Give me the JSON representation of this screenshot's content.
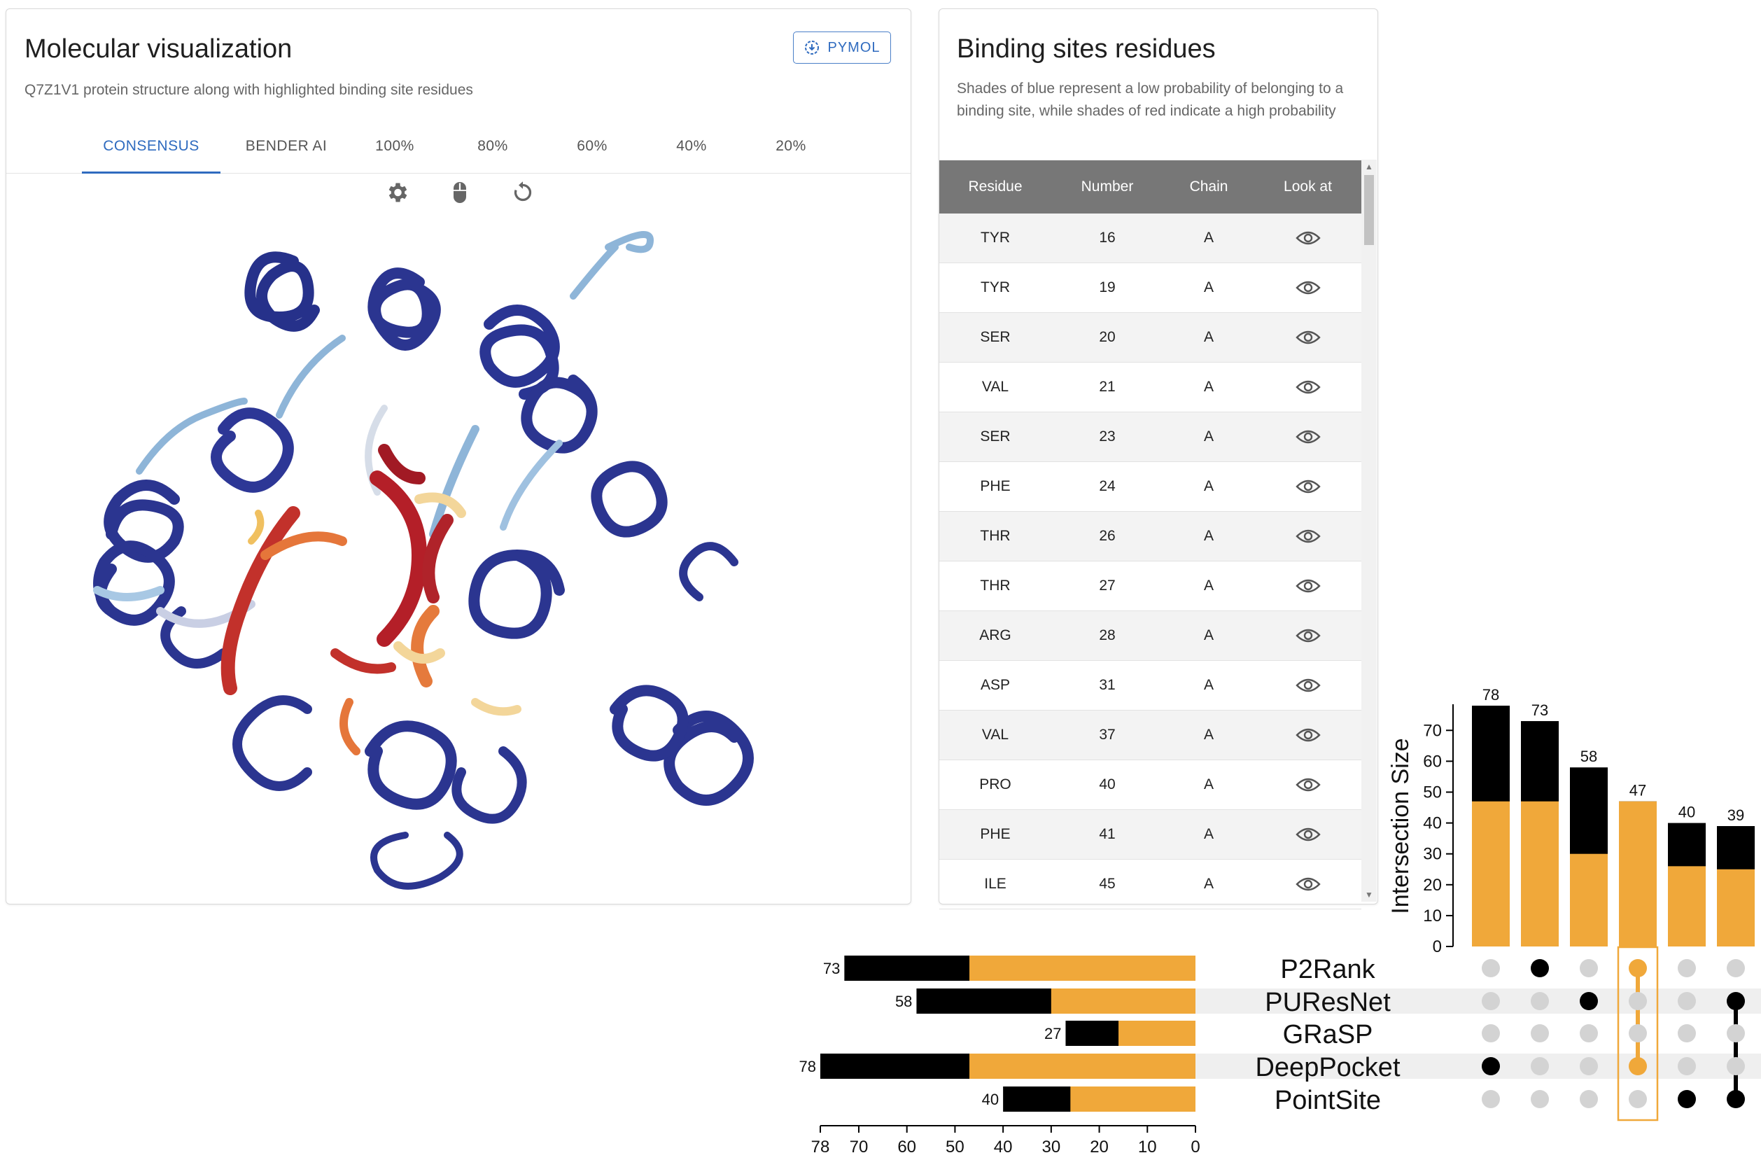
{
  "molecular": {
    "title": "Molecular visualization",
    "subtitle": "Q7Z1V1 protein structure along with highlighted binding site residues",
    "pymol_label": "PYMOL",
    "tabs": [
      "CONSENSUS",
      "BENDER AI",
      "100%",
      "80%",
      "60%",
      "40%",
      "20%"
    ],
    "active_tab": "CONSENSUS",
    "tools": [
      "gear-icon",
      "mouse-icon",
      "reset-icon"
    ]
  },
  "binding": {
    "title": "Binding sites residues",
    "subtitle": "Shades of blue represent a low probability of belonging to a binding site, while shades of red indicate a high probability",
    "columns": [
      "Residue",
      "Number",
      "Chain",
      "Look at"
    ],
    "rows": [
      [
        "TYR",
        "16",
        "A"
      ],
      [
        "TYR",
        "19",
        "A"
      ],
      [
        "SER",
        "20",
        "A"
      ],
      [
        "VAL",
        "21",
        "A"
      ],
      [
        "SER",
        "23",
        "A"
      ],
      [
        "PHE",
        "24",
        "A"
      ],
      [
        "THR",
        "26",
        "A"
      ],
      [
        "THR",
        "27",
        "A"
      ],
      [
        "ARG",
        "28",
        "A"
      ],
      [
        "ASP",
        "31",
        "A"
      ],
      [
        "VAL",
        "37",
        "A"
      ],
      [
        "PRO",
        "40",
        "A"
      ],
      [
        "PHE",
        "41",
        "A"
      ],
      [
        "ILE",
        "45",
        "A"
      ]
    ]
  },
  "chart_data": {
    "type": "upset",
    "ylabel": "Intersection Size",
    "sets": [
      "P2Rank",
      "PUResNet",
      "GRaSP",
      "DeepPocket",
      "PointSite"
    ],
    "set_sizes": [
      73,
      58,
      27,
      78,
      40
    ],
    "set_sizes_highlighted": [
      47,
      30,
      16,
      47,
      26
    ],
    "set_axis_ticks": [
      78,
      70,
      60,
      50,
      40,
      30,
      20,
      10,
      0
    ],
    "intersections": [
      {
        "sets": [
          "DeepPocket"
        ],
        "size": 78,
        "highlighted": 47
      },
      {
        "sets": [
          "P2Rank"
        ],
        "size": 73,
        "highlighted": 47
      },
      {
        "sets": [
          "PUResNet"
        ],
        "size": 58,
        "highlighted": 30
      },
      {
        "sets": [
          "P2Rank",
          "DeepPocket"
        ],
        "size": 47,
        "highlighted": 47,
        "selected": true
      },
      {
        "sets": [
          "PointSite"
        ],
        "size": 40,
        "highlighted": 26
      },
      {
        "sets": [
          "PUResNet",
          "PointSite"
        ],
        "size": 39,
        "highlighted": 25
      }
    ],
    "ylim": [
      0,
      78
    ],
    "y_ticks": [
      0,
      10,
      20,
      30,
      40,
      50,
      60,
      70
    ],
    "colors": {
      "highlight": "#f0a83a",
      "base": "#000000",
      "inactive_dot": "#d3d3d3",
      "row_band": "#efefef"
    }
  }
}
